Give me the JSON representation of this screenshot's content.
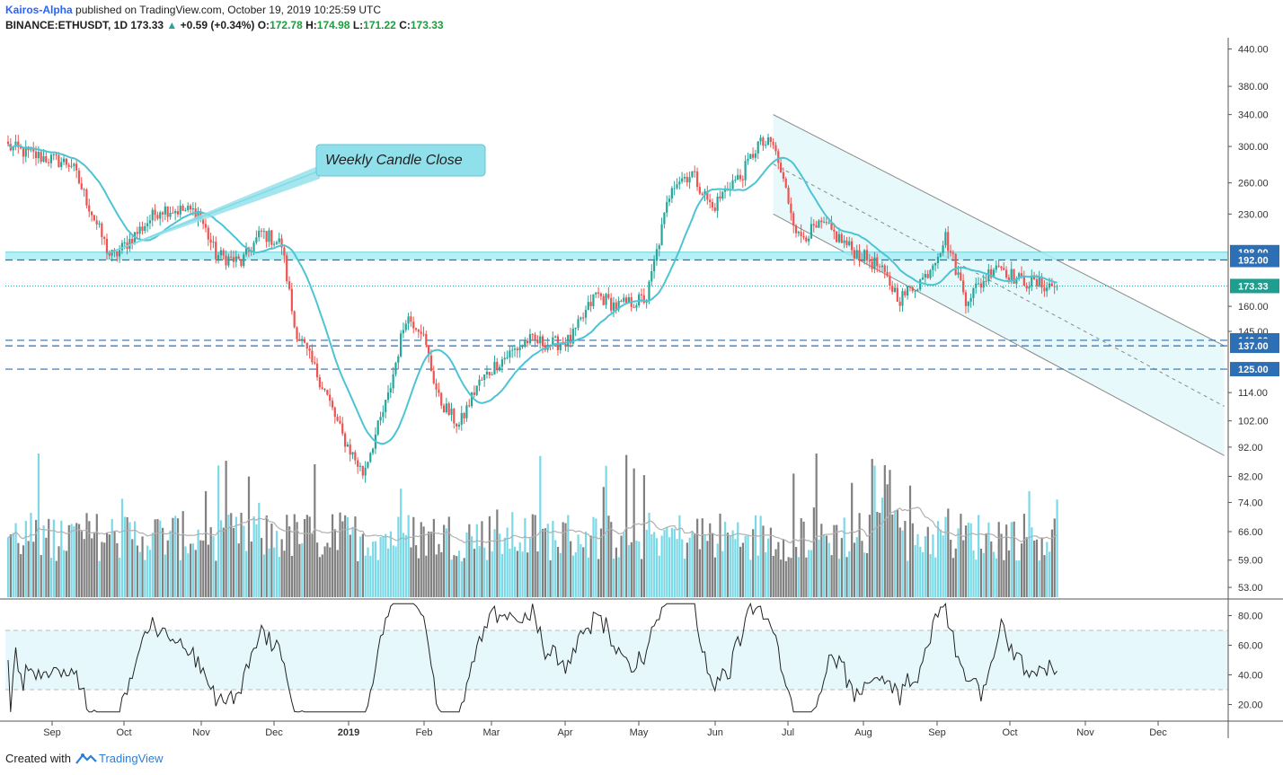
{
  "header": {
    "author": "Kairos-Alpha",
    "published": "published on TradingView.com, October 19, 2019 10:25:59 UTC",
    "symbol": "BINANCE:ETHUSDT, 1D",
    "last": "173.33",
    "change": "+0.59 (+0.34%)",
    "o_label": "O:",
    "o_value": "172.78",
    "h_label": "H:",
    "h_value": "174.98",
    "l_label": "L:",
    "l_value": "171.22",
    "c_label": "C:",
    "c_value": "173.33"
  },
  "footer": {
    "created_with": "Created with",
    "brand": "TradingView"
  },
  "annotation": {
    "text": "Weekly Candle Close"
  },
  "colors": {
    "up": "#26a69a",
    "down": "#ef5350",
    "ma": "#4dc4d4",
    "volume_up": "#7ad9e6",
    "volume_down": "#808080",
    "level_band": "#a6eef5",
    "level_line": "#2d6fb5",
    "channel_fill": "#e6f8fc",
    "rsi_band": "#e6f8fc",
    "price_tag": "#1e9e8f"
  },
  "chart_data": [
    {
      "type": "candlestick",
      "title": "",
      "symbol": "BINANCE:ETHUSDT",
      "timeframe": "1D",
      "x_ticks": [
        "Sep",
        "Oct",
        "Nov",
        "Dec",
        "2019",
        "Feb",
        "Mar",
        "Apr",
        "May",
        "Jun",
        "Jul",
        "Aug",
        "Sep",
        "Oct",
        "Nov",
        "Dec"
      ],
      "y_ticks": [
        "440.00",
        "380.00",
        "340.00",
        "300.00",
        "260.00",
        "230.00",
        "160.00",
        "145.00",
        "114.00",
        "102.00",
        "92.00",
        "82.00",
        "74.00",
        "66.00",
        "59.00",
        "53.00"
      ],
      "y_scale": "log",
      "ylim": [
        51,
        460
      ],
      "close_anchors": {
        "x": [
          0,
          10,
          25,
          40,
          42,
          60,
          75,
          82,
          92,
          100,
          108,
          113,
          125,
          132,
          140,
          150,
          157,
          163,
          170,
          178,
          185,
          193,
          205,
          215,
          222,
          232,
          240,
          252,
          262,
          270,
          278,
          285,
          289,
          296,
          302,
          312,
          322,
          333,
          343,
          352,
          362,
          370,
          378,
          385,
          390,
          398,
          405,
          412
        ],
        "y": [
          300,
          290,
          280,
          196,
          195,
          235,
          232,
          196,
          190,
          214,
          204,
          148,
          115,
          96,
          83,
          112,
          154,
          147,
          111,
          100,
          117,
          128,
          140,
          138,
          140,
          168,
          160,
          165,
          260,
          270,
          235,
          260,
          265,
          303,
          302,
          210,
          220,
          200,
          188,
          165,
          180,
          210,
          165,
          177,
          190,
          178,
          175,
          173.33
        ]
      },
      "moving_average": {
        "type": "MA",
        "values_estimated_from_anchors": true
      },
      "levels": [
        {
          "label": "198.00",
          "value": 198,
          "style": "band-top"
        },
        {
          "label": "192.00",
          "value": 192,
          "style": "dashed"
        },
        {
          "label": "173.33",
          "value": 173.33,
          "style": "last-price"
        },
        {
          "label": "140.00",
          "value": 140,
          "style": "dashed"
        },
        {
          "label": "137.00",
          "value": 137,
          "style": "dashed"
        },
        {
          "label": "125.00",
          "value": 125,
          "style": "dashed"
        }
      ],
      "channel": {
        "upper": {
          "from": [
            302,
            340
          ],
          "to": [
            480,
            137
          ]
        },
        "lower": {
          "from": [
            302,
            230
          ],
          "to": [
            480,
            89
          ]
        },
        "mid": {
          "from": [
            302,
            280
          ],
          "to": [
            480,
            108
          ]
        }
      }
    },
    {
      "type": "bar",
      "title": "",
      "name": "Volume",
      "overlay_name": "Volume MA",
      "values_relative_0_1": "generated"
    },
    {
      "type": "line",
      "title": "",
      "name": "RSI",
      "y_ticks": [
        "80.00",
        "60.00",
        "40.00",
        "20.00"
      ],
      "ylim": [
        10,
        90
      ],
      "band": [
        30,
        70
      ],
      "values_estimated": true
    }
  ]
}
